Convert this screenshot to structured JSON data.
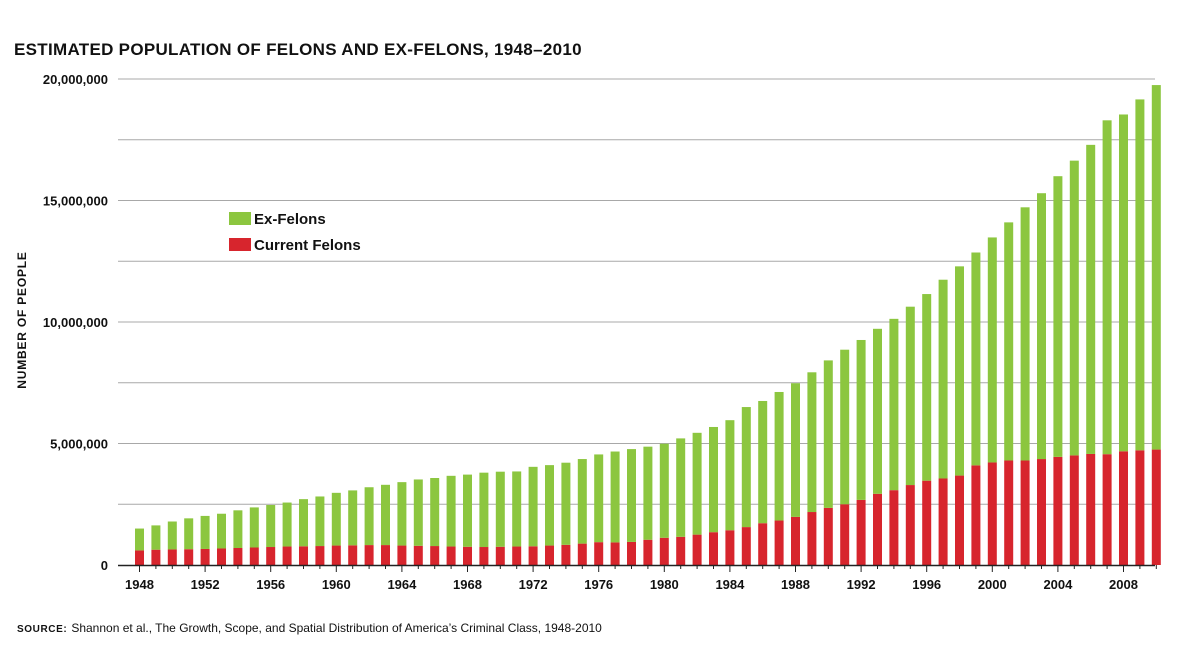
{
  "colors": {
    "ex_felons": "#8cc63f",
    "current_felons": "#d7252d",
    "grid": "#a8a8a8",
    "axis": "#222222"
  },
  "chart_data": {
    "type": "bar",
    "stacked": true,
    "title": "ESTIMATED POPULATION OF FELONS AND EX-FELONS, 1948–2010",
    "xlabel": "",
    "ylabel": "NUMBER OF PEOPLE",
    "ylim": [
      0,
      20000000
    ],
    "y_ticks": [
      0,
      5000000,
      10000000,
      15000000,
      20000000
    ],
    "y_tick_labels": [
      "0",
      "5,000,000",
      "10,000,000",
      "15,000,000",
      "20,000,000"
    ],
    "x_tick_labels": [
      "1948",
      "1952",
      "1956",
      "1960",
      "1964",
      "1968",
      "1972",
      "1976",
      "1980",
      "1984",
      "1988",
      "1992",
      "1996",
      "2000",
      "2004",
      "2008"
    ],
    "grid": true,
    "legend_position": "upper-left",
    "categories": [
      1948,
      1949,
      1950,
      1951,
      1952,
      1953,
      1954,
      1955,
      1956,
      1957,
      1958,
      1959,
      1960,
      1961,
      1962,
      1963,
      1964,
      1965,
      1966,
      1967,
      1968,
      1969,
      1970,
      1971,
      1972,
      1973,
      1974,
      1975,
      1976,
      1977,
      1978,
      1979,
      1980,
      1981,
      1982,
      1983,
      1984,
      1985,
      1986,
      1987,
      1988,
      1989,
      1990,
      1991,
      1992,
      1993,
      1994,
      1995,
      1996,
      1997,
      1998,
      1999,
      2000,
      2001,
      2002,
      2003,
      2004,
      2005,
      2006,
      2007,
      2008,
      2009,
      2010
    ],
    "series": [
      {
        "name": "Current Felons",
        "key": "current_felons",
        "values": [
          600000,
          630000,
          640000,
          650000,
          660000,
          680000,
          700000,
          720000,
          740000,
          760000,
          770000,
          780000,
          800000,
          810000,
          820000,
          820000,
          800000,
          790000,
          780000,
          760000,
          750000,
          740000,
          750000,
          760000,
          770000,
          800000,
          830000,
          880000,
          940000,
          930000,
          950000,
          1040000,
          1120000,
          1160000,
          1250000,
          1350000,
          1430000,
          1560000,
          1720000,
          1830000,
          1980000,
          2180000,
          2350000,
          2500000,
          2680000,
          2930000,
          3080000,
          3290000,
          3470000,
          3560000,
          3680000,
          4100000,
          4220000,
          4300000,
          4300000,
          4360000,
          4450000,
          4510000,
          4570000,
          4560000,
          4680000,
          4720000,
          4750000
        ]
      },
      {
        "name": "Ex-Felons",
        "key": "ex_felons",
        "values": [
          900000,
          1000000,
          1150000,
          1270000,
          1360000,
          1430000,
          1550000,
          1650000,
          1730000,
          1810000,
          1940000,
          2040000,
          2170000,
          2260000,
          2380000,
          2480000,
          2610000,
          2730000,
          2800000,
          2910000,
          2970000,
          3060000,
          3090000,
          3090000,
          3270000,
          3310000,
          3380000,
          3480000,
          3610000,
          3740000,
          3820000,
          3830000,
          3870000,
          4050000,
          4190000,
          4330000,
          4530000,
          4940000,
          5030000,
          5290000,
          5500000,
          5750000,
          6070000,
          6360000,
          6580000,
          6790000,
          7050000,
          7340000,
          7680000,
          8180000,
          8610000,
          8760000,
          9260000,
          9800000,
          10420000,
          10940000,
          11550000,
          12130000,
          12720000,
          13740000,
          13860000,
          14440000,
          15000000
        ]
      }
    ]
  },
  "legend": {
    "ex_felons_label": "Ex-Felons",
    "current_felons_label": "Current Felons"
  },
  "source": {
    "label": "SOURCE:",
    "text": "Shannon et al., The Growth, Scope, and Spatial Distribution of America’s Criminal Class, 1948-2010"
  }
}
